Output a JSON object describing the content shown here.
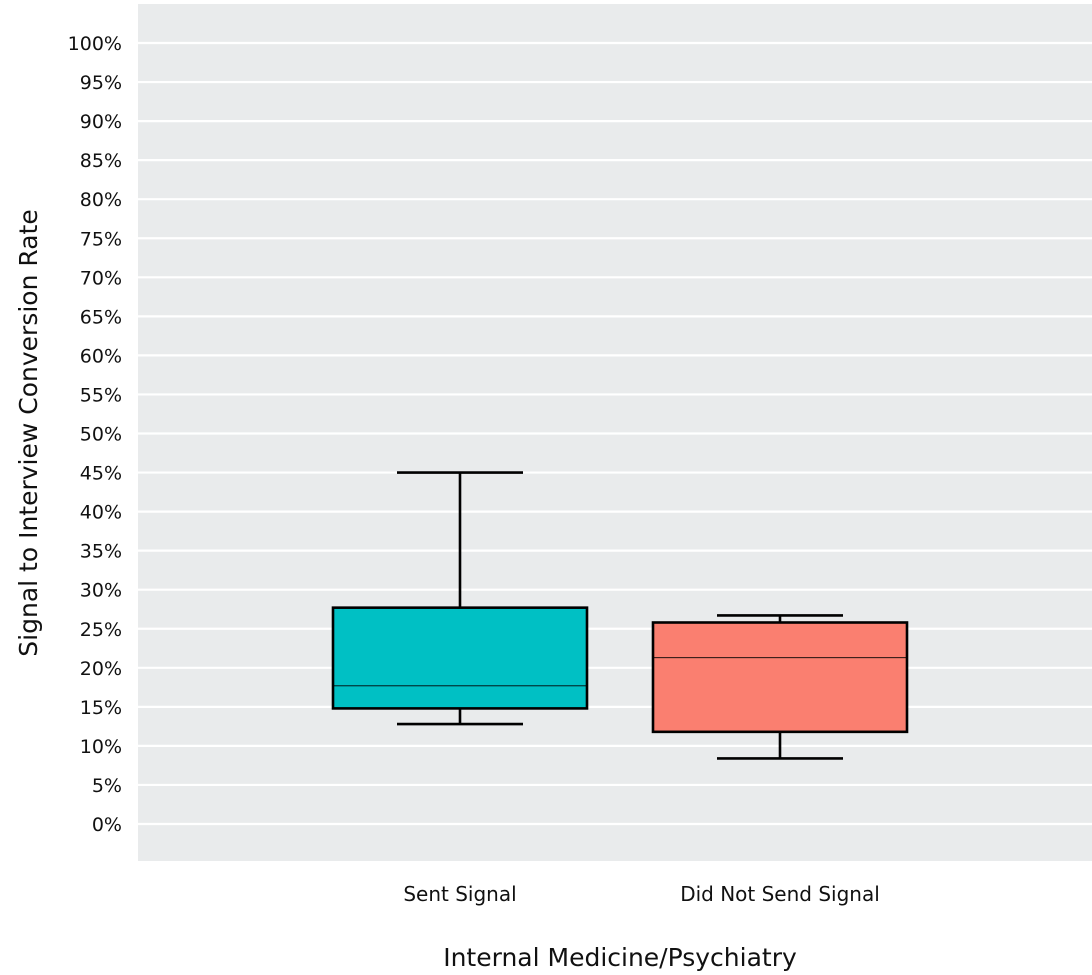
{
  "chart_data": {
    "type": "boxplot",
    "xlabel": "Internal Medicine/Psychiatry",
    "ylabel": "Signal to Interview Conversion Rate",
    "ylim": [
      -5,
      105
    ],
    "yticks": [
      "0%",
      "5%",
      "10%",
      "15%",
      "20%",
      "25%",
      "30%",
      "35%",
      "40%",
      "45%",
      "50%",
      "55%",
      "60%",
      "65%",
      "70%",
      "75%",
      "80%",
      "85%",
      "90%",
      "95%",
      "100%"
    ],
    "categories": [
      "Sent Signal",
      "Did Not Send Signal"
    ],
    "boxes": [
      {
        "category": "Sent Signal",
        "min": 12.8,
        "q1": 14.8,
        "median": 17.7,
        "q3": 27.7,
        "max": 45.0,
        "color": "#00c0c4"
      },
      {
        "category": "Did Not Send Signal",
        "min": 8.4,
        "q1": 11.8,
        "median": 21.3,
        "q3": 25.8,
        "max": 26.7,
        "color": "#fa7f70"
      }
    ],
    "grid": true,
    "background": "#e9ebec",
    "gridline_color": "#ffffff"
  }
}
